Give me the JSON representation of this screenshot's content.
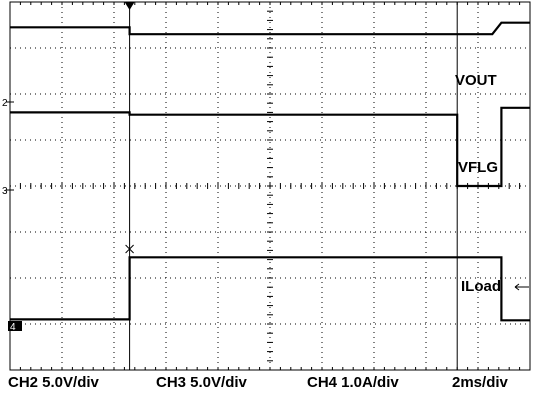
{
  "chart_data": {
    "type": "line",
    "x_unit": "ms",
    "x_range": [
      0,
      20
    ],
    "y_unit": "div",
    "y_range": [
      0,
      8
    ],
    "grid": true,
    "axis_markers": [
      "2",
      "3",
      "4"
    ],
    "trigger_marker": "T",
    "series": [
      {
        "name": "VOUT",
        "points": [
          [
            0,
            7.45
          ],
          [
            4.6,
            7.45
          ],
          [
            4.6,
            7.3
          ],
          [
            18.55,
            7.3
          ],
          [
            18.9,
            7.55
          ],
          [
            20,
            7.55
          ]
        ]
      },
      {
        "name": "VFLG",
        "points": [
          [
            0,
            5.6
          ],
          [
            4.6,
            5.6
          ],
          [
            4.6,
            5.55
          ],
          [
            17.2,
            5.55
          ],
          [
            17.2,
            4.0
          ],
          [
            18.9,
            4.0
          ],
          [
            18.9,
            5.7
          ],
          [
            20,
            5.7
          ]
        ]
      },
      {
        "name": "ILoad",
        "points": [
          [
            0,
            1.1
          ],
          [
            4.6,
            1.1
          ],
          [
            4.6,
            2.45
          ],
          [
            18.9,
            2.45
          ],
          [
            18.9,
            1.08
          ],
          [
            20,
            1.08
          ]
        ]
      }
    ],
    "cursor_time_ms": 17.2,
    "labels": {
      "vout": "VOUT",
      "vflg": "VFLG",
      "iload": "ILoad"
    },
    "scales": {
      "ch2": "CH2 5.0V/div",
      "ch3": "CH3 5.0V/div",
      "ch4": "CH4 1.0A/div",
      "time": "2ms/div"
    }
  }
}
